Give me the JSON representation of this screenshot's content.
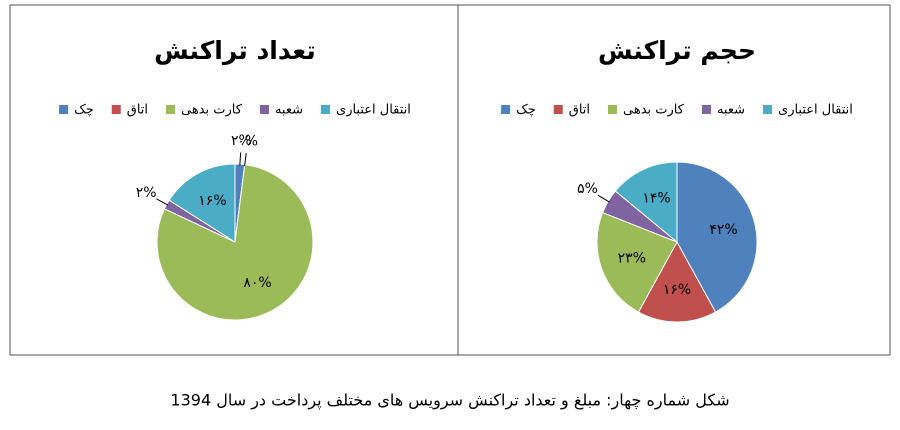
{
  "chart_data": [
    {
      "type": "pie",
      "title": "حجم تراکنش",
      "categories": [
        "چک",
        "اتاق",
        "کارت بدهی",
        "شعبه",
        "انتقال اعتباری"
      ],
      "colors": [
        "#4f81bd",
        "#c0504d",
        "#9bbb59",
        "#8064a2",
        "#4bacc6"
      ],
      "values": [
        42,
        16,
        23,
        5,
        14
      ],
      "value_labels": [
        "۴۲%",
        "۱۶%",
        "۲۳%",
        "۵%",
        "۱۴%"
      ]
    },
    {
      "type": "pie",
      "title": "تعداد تراکنش",
      "categories": [
        "چک",
        "اتاق",
        "کارت بدهی",
        "شعبه",
        "انتقال اعتباری"
      ],
      "colors": [
        "#4f81bd",
        "#c0504d",
        "#9bbb59",
        "#8064a2",
        "#4bacc6"
      ],
      "values": [
        2,
        0,
        80,
        2,
        16
      ],
      "value_labels": [
        "۲%",
        "۰%",
        "۸۰%",
        "۲%",
        "۱۶%"
      ]
    }
  ],
  "caption": "شکل شماره چهار: مبلغ و تعداد تراکنش سرویس های مختلف پرداخت در سال 1394"
}
